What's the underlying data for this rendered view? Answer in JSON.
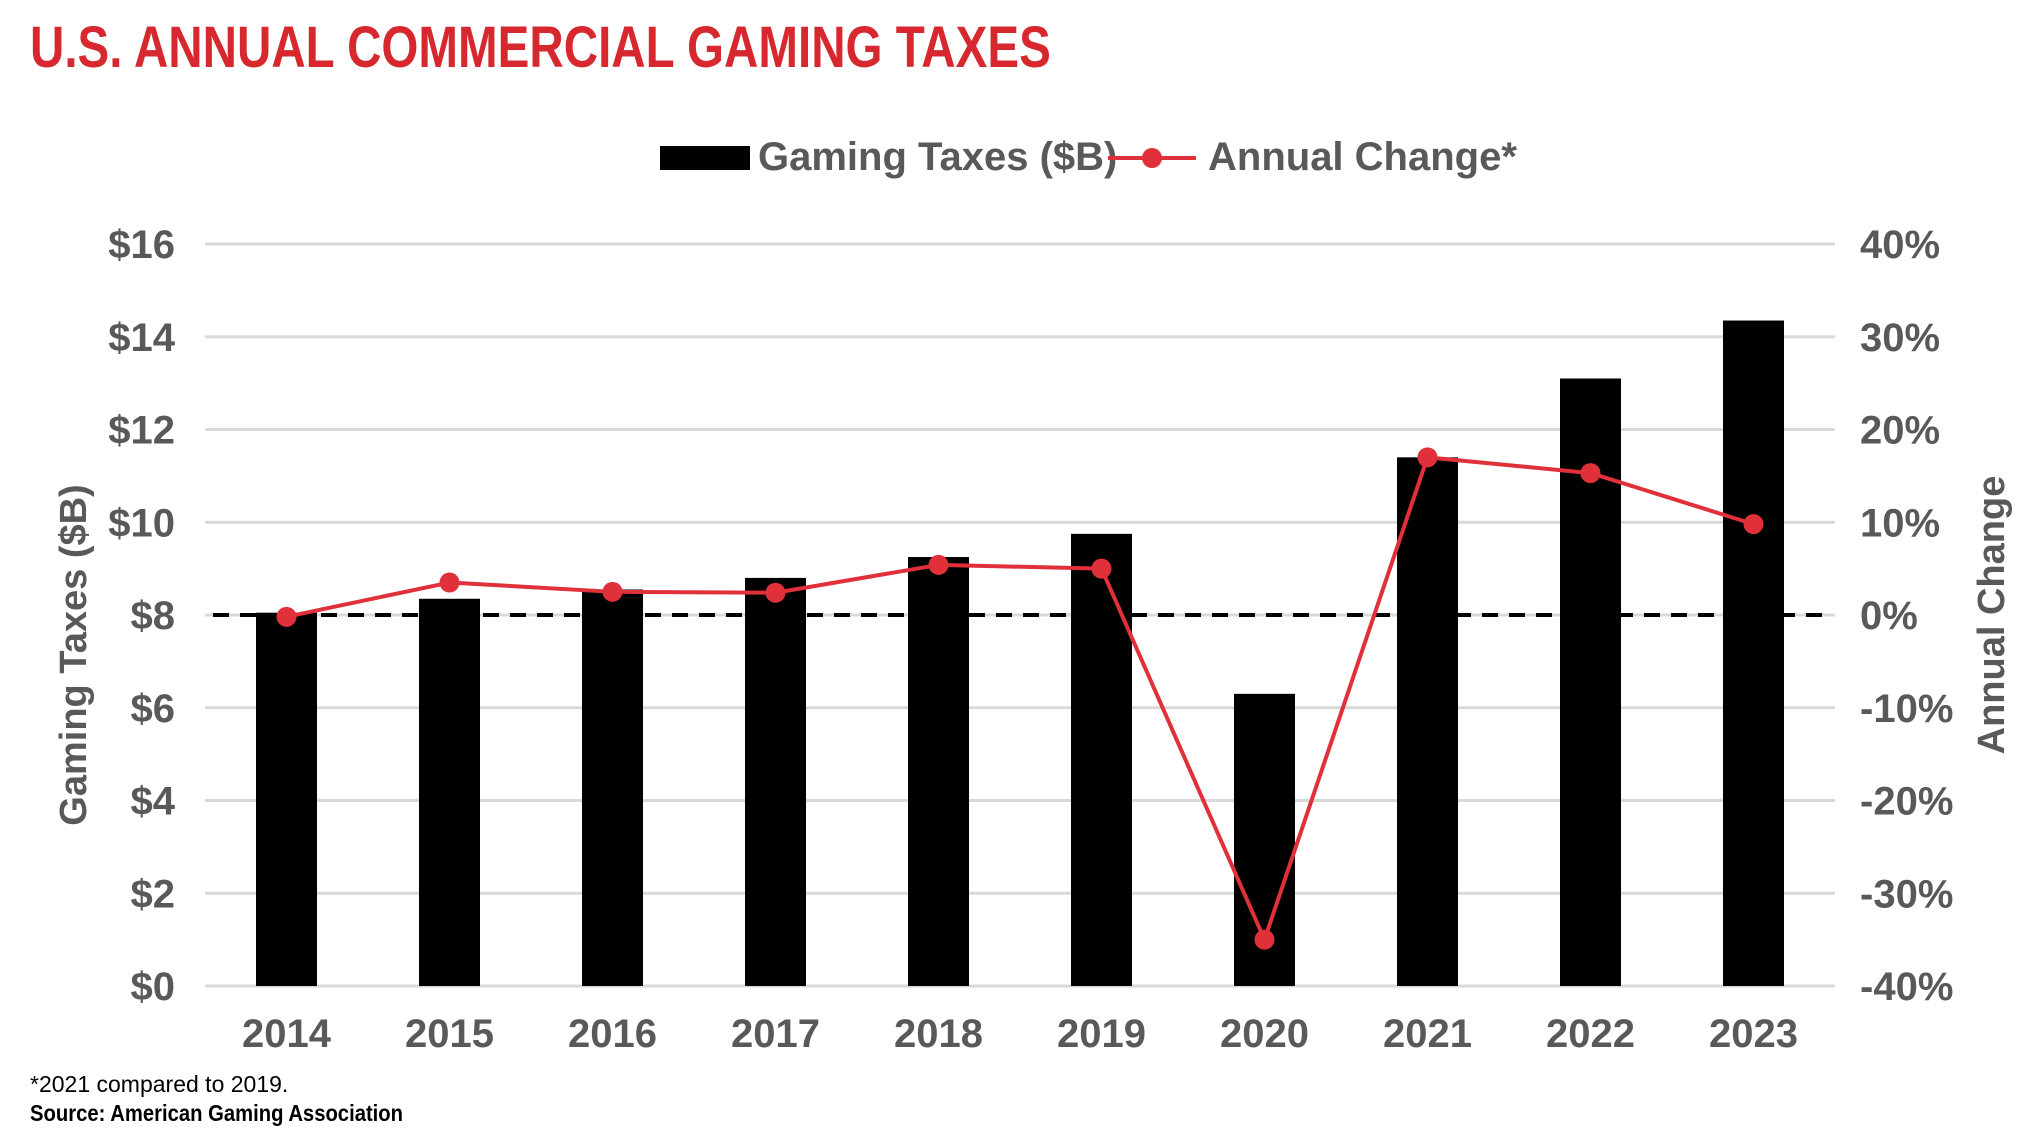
{
  "title": "U.S. ANNUAL COMMERCIAL GAMING TAXES",
  "footnote": "*2021 compared to 2019.",
  "source": "Source: American Gaming Association",
  "colors": {
    "bar": "#000000",
    "line": "#e0303a",
    "title": "#d7282f",
    "text": "#595959",
    "grid": "#d9d9d9"
  },
  "chart_data": {
    "type": "bar",
    "categories": [
      "2014",
      "2015",
      "2016",
      "2017",
      "2018",
      "2019",
      "2020",
      "2021",
      "2022",
      "2023"
    ],
    "series": [
      {
        "name": "Gaming Taxes ($B)",
        "type": "bar",
        "axis": "left",
        "values": [
          8.05,
          8.35,
          8.55,
          8.8,
          9.25,
          9.75,
          6.3,
          11.4,
          13.1,
          14.35
        ]
      },
      {
        "name": "Annual Change*",
        "type": "line",
        "axis": "right",
        "values": [
          -0.2,
          3.5,
          2.5,
          2.4,
          5.4,
          5.0,
          -35.0,
          17.0,
          15.3,
          9.8
        ]
      }
    ],
    "ylabel": "Gaming Taxes ($B)",
    "y2label": "Annual Change",
    "ylim": [
      0,
      16
    ],
    "y2lim": [
      -40,
      40
    ],
    "yticks": [
      "$0",
      "$2",
      "$4",
      "$6",
      "$8",
      "$10",
      "$12",
      "$14",
      "$16"
    ],
    "y2ticks": [
      "-40%",
      "-30%",
      "-20%",
      "-10%",
      "0%",
      "10%",
      "20%",
      "30%",
      "40%"
    ],
    "reference_line": {
      "axis": "right",
      "value": 0,
      "style": "dashed"
    },
    "grid": true,
    "legend_position": "top-center"
  }
}
